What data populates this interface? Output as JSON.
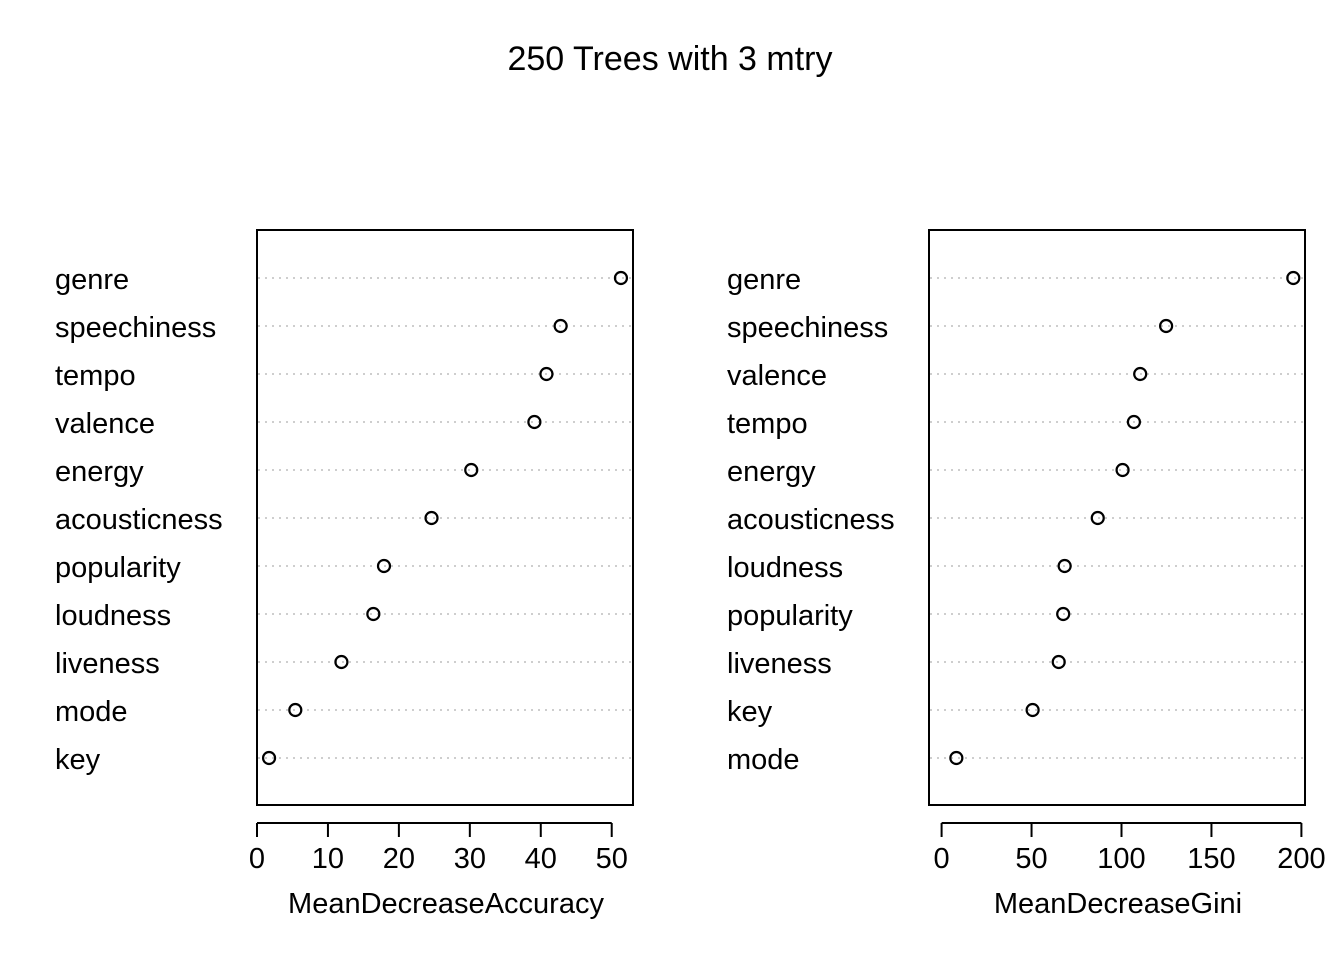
{
  "title": "250 Trees with 3 mtry",
  "chart_data": [
    {
      "type": "scatter",
      "subtype": "dotchart",
      "title": "250 Trees with 3 mtry",
      "xlabel": "MeanDecreaseAccuracy",
      "xlim": [
        0,
        53
      ],
      "xticks": [
        0,
        10,
        20,
        30,
        40,
        50
      ],
      "categories": [
        "genre",
        "speechiness",
        "tempo",
        "valence",
        "energy",
        "acousticness",
        "popularity",
        "loudness",
        "liveness",
        "mode",
        "key"
      ],
      "values": [
        51.3,
        42.8,
        40.8,
        39.1,
        30.2,
        24.6,
        17.9,
        16.4,
        11.9,
        5.4,
        1.7
      ],
      "grid": "dotted"
    },
    {
      "type": "scatter",
      "subtype": "dotchart",
      "title": "250 Trees with 3 mtry",
      "xlabel": "MeanDecreaseGini",
      "xlim": [
        -7,
        202
      ],
      "xticks": [
        0,
        50,
        100,
        150,
        200
      ],
      "categories": [
        "genre",
        "speechiness",
        "valence",
        "tempo",
        "energy",
        "acousticness",
        "loudness",
        "popularity",
        "liveness",
        "key",
        "mode"
      ],
      "values": [
        195.5,
        124.8,
        110.4,
        106.9,
        100.6,
        86.8,
        68.4,
        67.6,
        65.1,
        50.6,
        8.2
      ],
      "grid": "dotted"
    }
  ],
  "colors": {
    "ink": "#000000",
    "grid": "#bebebe",
    "background": "#ffffff"
  }
}
